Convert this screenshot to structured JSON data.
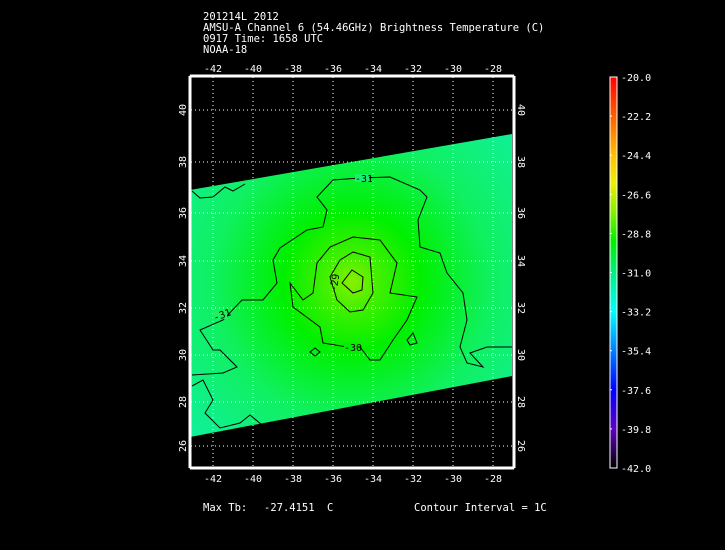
{
  "title": {
    "line1": "201214L 2012",
    "line2": "AMSU-A Channel 6 (54.46GHz) Brightness Temperature (C)",
    "line3": "0917 Time: 1658 UTC",
    "line4": "NOAA-18"
  },
  "map": {
    "lon_ticks": [
      "-42",
      "-40",
      "-38",
      "-36",
      "-34",
      "-32",
      "-30",
      "-28"
    ],
    "lat_ticks": [
      "40",
      "38",
      "36",
      "34",
      "32",
      "30",
      "28",
      "26"
    ],
    "contour_labels": [
      "-31",
      "-31",
      "-30",
      "-29"
    ],
    "max_center_lon": -35.2,
    "max_center_lat": 33.2
  },
  "colorbar": {
    "labels": [
      "-20.0",
      "-22.2",
      "-24.4",
      "-26.6",
      "-28.8",
      "-31.0",
      "-33.2",
      "-35.4",
      "-37.6",
      "-39.8",
      "-42.0"
    ],
    "colors": [
      "#ff0000",
      "#ff6000",
      "#ffc000",
      "#c0ff00",
      "#00f000",
      "#00f080",
      "#00ffff",
      "#0080ff",
      "#0000ff",
      "#6000c0",
      "#000000"
    ]
  },
  "footer": {
    "max_label": "Max Tb:",
    "max_value": "-27.4151",
    "max_unit": "C",
    "contour_interval": "Contour Interval = 1C"
  }
}
